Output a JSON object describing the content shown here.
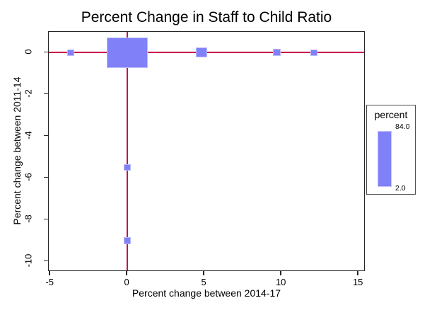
{
  "chart_data": {
    "type": "scatter",
    "title": "Percent Change in Staff to Child Ratio",
    "xlabel": "Percent change between 2014-17",
    "ylabel": "Percent change between 2011-14",
    "xlim": [
      -5.1,
      15.45
    ],
    "ylim": [
      -10.5,
      1.0
    ],
    "x_ticks": [
      -5,
      0,
      5,
      10,
      15
    ],
    "y_ticks": [
      0,
      -2,
      -4,
      -6,
      -8,
      -10
    ],
    "grid": false,
    "weight_variable": "percent",
    "reference_lines": {
      "x": 0,
      "y": 0
    },
    "points": [
      {
        "x": -3.7,
        "y": 0,
        "percent": 2,
        "marker_px": {
          "w": 10,
          "h": 9
        }
      },
      {
        "x": 0,
        "y": 0,
        "percent": 84,
        "marker_px": {
          "w": 58,
          "h": 43
        }
      },
      {
        "x": 4.8,
        "y": 0,
        "percent": 6,
        "marker_px": {
          "w": 16,
          "h": 14
        }
      },
      {
        "x": 9.7,
        "y": 0,
        "percent": 2,
        "marker_px": {
          "w": 11,
          "h": 10
        }
      },
      {
        "x": 12.1,
        "y": 0,
        "percent": 2,
        "marker_px": {
          "w": 10,
          "h": 9
        }
      },
      {
        "x": 0,
        "y": -5.5,
        "percent": 2,
        "marker_px": {
          "w": 10,
          "h": 9
        }
      },
      {
        "x": 0,
        "y": -9.0,
        "percent": 2,
        "marker_px": {
          "w": 10,
          "h": 10
        }
      }
    ],
    "legend": {
      "title": "percent",
      "max_label": "84.0",
      "min_label": "2.0",
      "position": "right-outside"
    },
    "colors": {
      "marker_fill": "#8080f8",
      "marker_border": "#bcbcfa",
      "crosshair": "#c6134b",
      "axis": "#262626",
      "background": "#ffffff"
    }
  }
}
